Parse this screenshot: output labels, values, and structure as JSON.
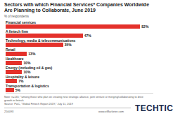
{
  "chart_data": {
    "type": "bar",
    "orientation": "horizontal",
    "title": "Sectors with which Financial Services* Companies Worldwide Are Planning to Collaborate, June 2019",
    "subtitle": "% of respondents",
    "categories": [
      "Financial services",
      "A fintech firm",
      "Technology, media & telecommunications",
      "Retail",
      "Healthcare",
      "Energy (including oil & gas)",
      "Hospitality & leisure",
      "Transportation & logistics"
    ],
    "values": [
      82,
      47,
      35,
      13,
      10,
      10,
      7,
      5
    ],
    "value_labels": [
      "82%",
      "47%",
      "35%",
      "13%",
      "10%",
      "10%",
      "7%",
      "5%"
    ],
    "color": "#e4312b",
    "xlim": [
      0,
      90
    ],
    "data_labels": true,
    "tick_labels": false,
    "grid": false,
    "note": "Note: n=131; *among those who plan on creating new strategic alliance, joint venture or merging/collaborating to drive growth in fintech",
    "source": "Source: PwC, \"Global Fintech Report 2019,\" July 11, 2019",
    "chart_id": "250093",
    "website": "www.eMarketer.com",
    "logo": "TECHTIC"
  }
}
